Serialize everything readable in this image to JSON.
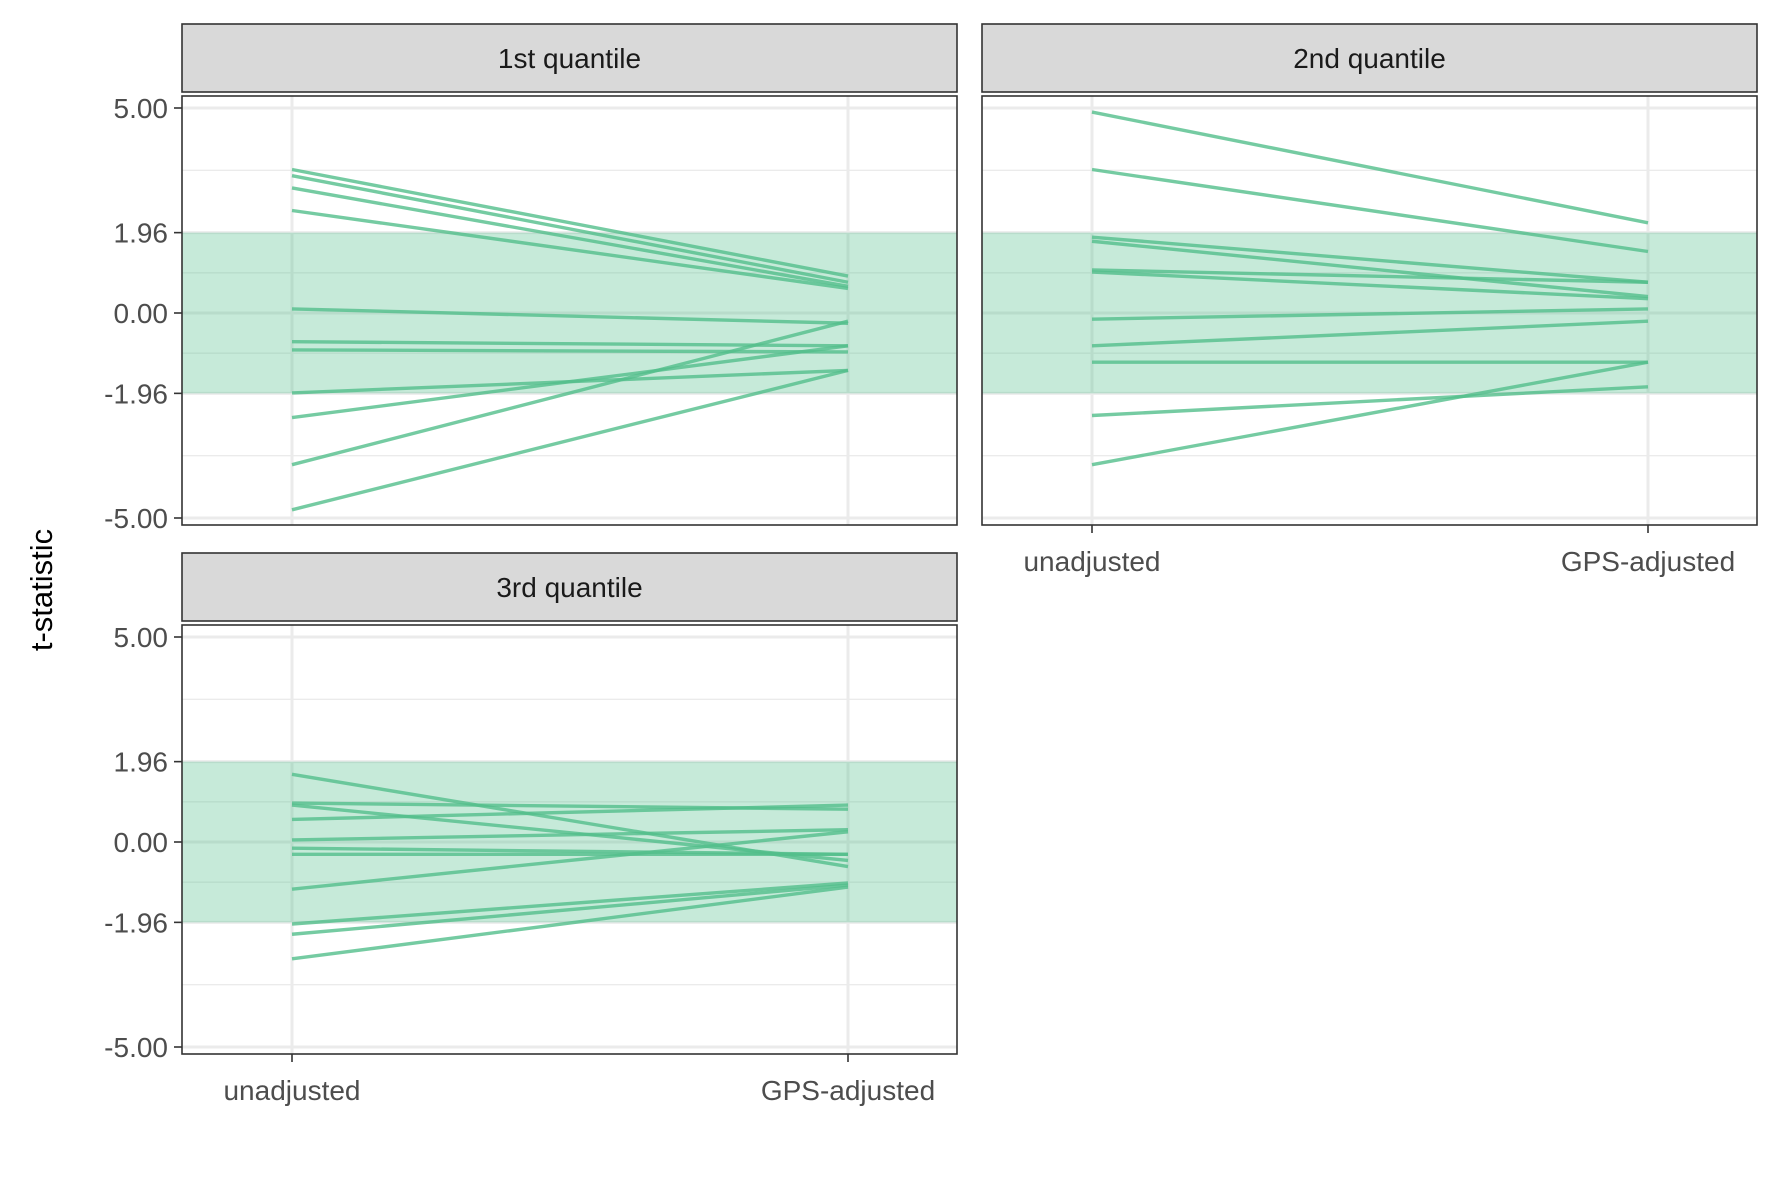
{
  "chart_data": {
    "type": "line",
    "ylabel": "t-statistic",
    "xlabel": "",
    "categories": [
      "unadjusted",
      "GPS-adjusted"
    ],
    "y_ticks": [
      5.0,
      1.96,
      0.0,
      -1.96,
      -5.0
    ],
    "y_tick_labels": [
      "5.00",
      "1.96",
      "0.00",
      "-1.96",
      "-5.00"
    ],
    "ylim": [
      -5.2,
      5.0
    ],
    "band": {
      "from": -1.96,
      "to": 1.96,
      "color": "#52BE8B"
    },
    "line_color": "#52BE8B",
    "grid": true,
    "facets": [
      {
        "title": "1st quantile",
        "pairs": [
          [
            3.5,
            0.9
          ],
          [
            3.35,
            0.75
          ],
          [
            3.05,
            0.65
          ],
          [
            2.5,
            0.6
          ],
          [
            0.1,
            -0.25
          ],
          [
            -0.7,
            -0.8
          ],
          [
            -0.9,
            -0.95
          ],
          [
            -1.95,
            -1.4
          ],
          [
            -2.55,
            -0.8
          ],
          [
            -3.7,
            -0.2
          ],
          [
            -4.8,
            -1.4
          ]
        ]
      },
      {
        "title": "2nd quantile",
        "pairs": [
          [
            4.9,
            2.2
          ],
          [
            3.5,
            1.5
          ],
          [
            1.85,
            0.75
          ],
          [
            1.75,
            0.4
          ],
          [
            1.05,
            0.75
          ],
          [
            1.0,
            0.35
          ],
          [
            -0.15,
            0.1
          ],
          [
            -0.8,
            -0.2
          ],
          [
            -1.2,
            -1.2
          ],
          [
            -2.5,
            -1.8
          ],
          [
            -3.7,
            -1.2
          ]
        ]
      },
      {
        "title": "3rd quantile",
        "pairs": [
          [
            1.65,
            -0.6
          ],
          [
            0.95,
            0.8
          ],
          [
            0.9,
            -0.45
          ],
          [
            0.55,
            0.9
          ],
          [
            0.05,
            0.3
          ],
          [
            -0.15,
            -0.3
          ],
          [
            -0.3,
            -0.3
          ],
          [
            -1.15,
            0.25
          ],
          [
            -2.0,
            -1.0
          ],
          [
            -2.25,
            -1.05
          ],
          [
            -2.85,
            -1.1
          ]
        ]
      }
    ]
  }
}
